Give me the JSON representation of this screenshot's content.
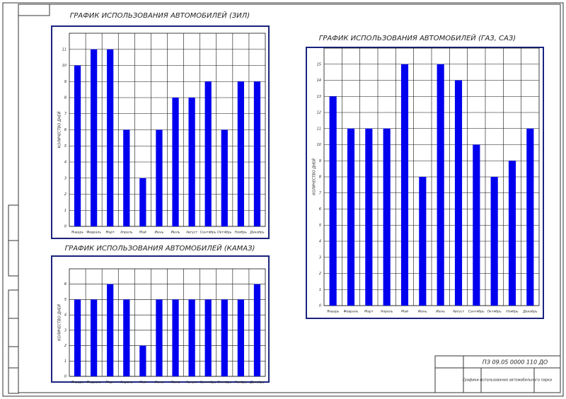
{
  "chart_data": [
    {
      "type": "bar",
      "title": "ГРАФИК ИСПОЛЬЗОВАНИЯ АВТОМОБИЛЕЙ (ЗИЛ)",
      "y_label": "КОЛИЧЕСТВО ДНЕЙ",
      "categories": [
        "Январь",
        "Февраль",
        "Март",
        "Апрель",
        "Май",
        "Июнь",
        "Июль",
        "Август",
        "Сентябрь",
        "Октябрь",
        "Ноябрь",
        "Декабрь"
      ],
      "values": [
        10,
        11,
        11,
        6,
        3,
        6,
        8,
        8,
        9,
        6,
        9,
        9
      ],
      "color": "#0000ee",
      "ylim": [
        0,
        12
      ],
      "yticks": [
        0,
        1,
        2,
        3,
        4,
        5,
        6,
        7,
        8,
        9,
        10,
        11
      ],
      "grid": true
    },
    {
      "type": "bar",
      "title": "ГРАФИК ИСПОЛЬЗОВАНИЯ АВТОМОБИЛЕЙ (КАМАЗ)",
      "y_label": "КОЛИЧЕСТВО ДНЕЙ",
      "categories": [
        "Январь",
        "Февраль",
        "Март",
        "Апрель",
        "Май",
        "Июнь",
        "Июль",
        "Август",
        "Сентябрь",
        "Октябрь",
        "Ноябрь",
        "Декабрь"
      ],
      "values": [
        5,
        5,
        6,
        5,
        2,
        5,
        5,
        5,
        5,
        5,
        5,
        6
      ],
      "color": "#0000ee",
      "ylim": [
        0,
        7
      ],
      "yticks": [
        0,
        1,
        2,
        3,
        4,
        5,
        6
      ],
      "grid": true
    },
    {
      "type": "bar",
      "title": "ГРАФИК ИСПОЛЬЗОВАНИЯ АВТОМОБИЛЕЙ (ГАЗ, САЗ)",
      "y_label": "КОЛИЧЕСТВО ДНЕЙ",
      "categories": [
        "Январь",
        "Февраль",
        "Март",
        "Апрель",
        "Май",
        "Июнь",
        "Июль",
        "Август",
        "Сентябрь",
        "Октябрь",
        "Ноябрь",
        "Декабрь"
      ],
      "values": [
        13,
        11,
        11,
        11,
        15,
        8,
        15,
        14,
        10,
        8,
        9,
        11
      ],
      "color": "#0000ee",
      "ylim": [
        0,
        16
      ],
      "yticks": [
        0,
        1,
        2,
        3,
        4,
        5,
        6,
        7,
        8,
        9,
        10,
        11,
        12,
        13,
        14,
        15
      ],
      "grid": true
    }
  ],
  "stamp": {
    "code": "ПЗ 09.05 0000 110 ДО",
    "name": "Графики использования автомобильного парка"
  }
}
